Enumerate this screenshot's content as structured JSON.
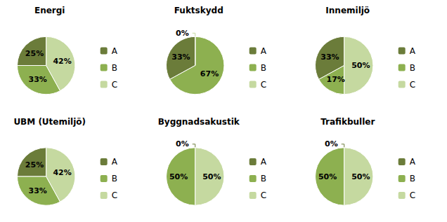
{
  "chart_data": [
    {
      "type": "pie",
      "title": "Energi",
      "categories": [
        "A",
        "B",
        "C"
      ],
      "values": [
        25,
        33,
        42
      ],
      "value_labels": [
        "25%",
        "33%",
        "42%"
      ],
      "colors": [
        "#6b7c3a",
        "#8db050",
        "#c5d9a0"
      ],
      "data_labels": true,
      "legend": "right"
    },
    {
      "type": "pie",
      "title": "Fuktskydd",
      "categories": [
        "A",
        "B",
        "C"
      ],
      "values": [
        33,
        67,
        0
      ],
      "value_labels": [
        "33%",
        "67%",
        "0%"
      ],
      "colors": [
        "#6b7c3a",
        "#8db050",
        "#c5d9a0"
      ],
      "data_labels": true,
      "legend": "right"
    },
    {
      "type": "pie",
      "title": "Innemiljö",
      "categories": [
        "A",
        "B",
        "C"
      ],
      "values": [
        33,
        17,
        50
      ],
      "value_labels": [
        "33%",
        "17%",
        "50%"
      ],
      "colors": [
        "#6b7c3a",
        "#8db050",
        "#c5d9a0"
      ],
      "data_labels": true,
      "legend": "right"
    },
    {
      "type": "pie",
      "title": "UBM (Utemiljö)",
      "categories": [
        "A",
        "B",
        "C"
      ],
      "values": [
        25,
        33,
        42
      ],
      "value_labels": [
        "25%",
        "33%",
        "42%"
      ],
      "colors": [
        "#6b7c3a",
        "#8db050",
        "#c5d9a0"
      ],
      "data_labels": true,
      "legend": "right"
    },
    {
      "type": "pie",
      "title": "Byggnadsakustik",
      "categories": [
        "A",
        "B",
        "C"
      ],
      "values": [
        0,
        50,
        50
      ],
      "value_labels": [
        "0%",
        "50%",
        "50%"
      ],
      "colors": [
        "#6b7c3a",
        "#8db050",
        "#c5d9a0"
      ],
      "data_labels": true,
      "legend": "right"
    },
    {
      "type": "pie",
      "title": "Trafikbuller",
      "categories": [
        "A",
        "B",
        "C"
      ],
      "values": [
        0,
        50,
        50
      ],
      "value_labels": [
        "0%",
        "50%",
        "50%"
      ],
      "colors": [
        "#6b7c3a",
        "#8db050",
        "#c5d9a0"
      ],
      "data_labels": true,
      "legend": "right"
    }
  ]
}
